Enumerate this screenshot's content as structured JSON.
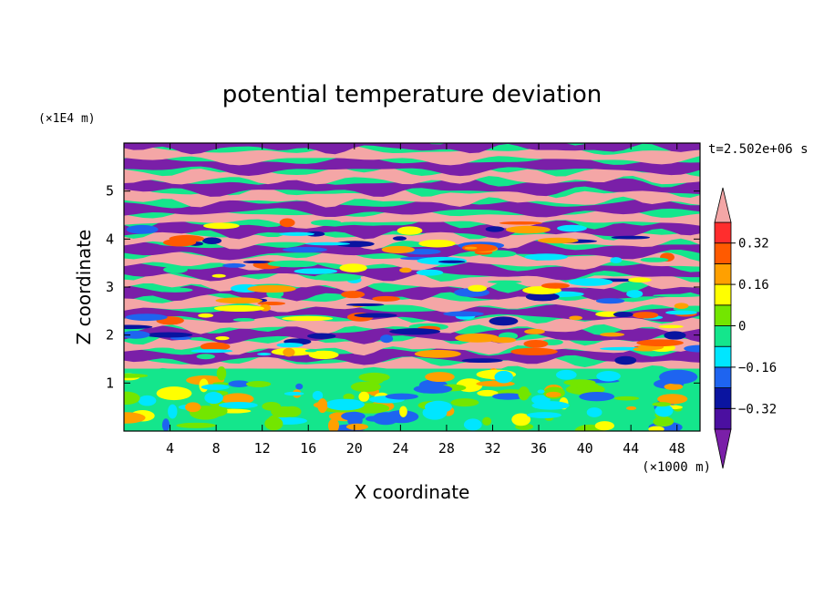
{
  "chart_data": {
    "type": "heatmap",
    "title": "potential temperature deviation",
    "xlabel": "X coordinate",
    "ylabel": "Z coordinate",
    "x_unit": "(×1000 m)",
    "y_unit": "(×1E4 m)",
    "time_label": "t=2.502e+06 s",
    "xlim": [
      0,
      50
    ],
    "ylim": [
      0,
      6
    ],
    "x_ticks": [
      4,
      8,
      12,
      16,
      20,
      24,
      28,
      32,
      36,
      40,
      44,
      48
    ],
    "y_ticks": [
      1,
      2,
      3,
      4,
      5
    ],
    "colorbar": {
      "levels": [
        -0.4,
        -0.32,
        -0.24,
        -0.16,
        -0.08,
        0,
        0.08,
        0.16,
        0.24,
        0.32,
        0.4
      ],
      "tick_labels": [
        "0.32",
        "0.16",
        "0",
        "−0.16",
        "−0.32"
      ],
      "tick_values": [
        0.32,
        0.16,
        0,
        -0.16,
        -0.32
      ],
      "colors": [
        "#7a1fa8",
        "#4b0fa0",
        "#0a14a0",
        "#1e64f0",
        "#00e6ff",
        "#14e68c",
        "#73e600",
        "#ffff00",
        "#ffa000",
        "#ff5a00",
        "#ff2d2d",
        "#f4a6a6"
      ],
      "extend": "both"
    },
    "grid": false
  }
}
